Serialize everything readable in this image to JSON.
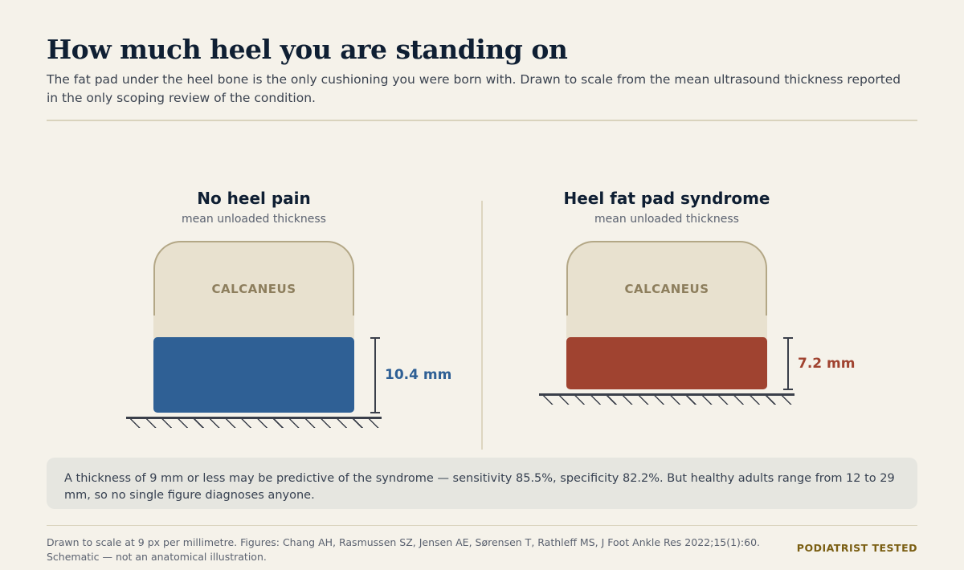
{
  "title": "How much heel you are standing on",
  "subtitle": "The fat pad under the heel bone is the only cushioning you were born with. Drawn to scale from the mean ultrasound thickness reported in the only scoping review of the condition.",
  "panels": [
    {
      "heading": "No heel pain",
      "subheading": "mean unloaded thickness",
      "bone_label": "CALCANEUS",
      "thickness_mm": 10.4,
      "thickness_label": "10.4 mm",
      "color": "#2f6095"
    },
    {
      "heading": "Heel fat pad syndrome",
      "subheading": "mean unloaded thickness",
      "bone_label": "CALCANEUS",
      "thickness_mm": 7.2,
      "thickness_label": "7.2 mm",
      "color": "#a04330"
    }
  ],
  "note": "A thickness of 9 mm or less may be predictive of the syndrome — sensitivity 85.5%, specificity 82.2%. But healthy adults range from 12 to 29 mm, so no single figure diagnoses anyone.",
  "footer": {
    "line1": "Drawn to scale at 9 px per millimetre. Figures: Chang AH, Rasmussen SZ, Jensen AE, Sørensen T, Rathleff MS, J Foot Ankle Res 2022;15(1):60.",
    "line2": "Schematic — not an anatomical illustration.",
    "badge": "PODIATRIST TESTED"
  }
}
